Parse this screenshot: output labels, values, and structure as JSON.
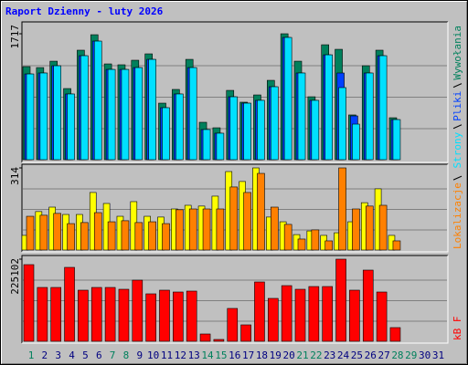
{
  "chart_data": [
    {
      "type": "bar",
      "title": "Raport Dzienny -  luty 2026",
      "ylim": [
        0,
        1717
      ],
      "yticks": [
        1717
      ],
      "series": [
        {
          "name": "Wywołania",
          "color": "#00805c",
          "values": [
            1269,
            1256,
            1343,
            970,
            1493,
            1704,
            1306,
            1294,
            1356,
            1443,
            771,
            958,
            1368,
            510,
            435,
            945,
            784,
            883,
            1082,
            1717,
            1343,
            858,
            1567,
            1505,
            610,
            1281,
            1493,
            572,
            null,
            null,
            null
          ]
        },
        {
          "name": "Pliki",
          "color": "#0040ff",
          "values": [
            1169,
            1182,
            1281,
            896,
            1418,
            1617,
            1231,
            1231,
            1256,
            1368,
            709,
            896,
            1256,
            411,
            361,
            858,
            771,
            809,
            995,
            1667,
            1182,
            809,
            1430,
            1182,
            597,
            1182,
            1418,
            547,
            null,
            null,
            null
          ]
        },
        {
          "name": "Strony",
          "color": "#00e0ff",
          "values": [
            1169,
            1182,
            1281,
            896,
            1418,
            1617,
            1231,
            1231,
            1256,
            1368,
            709,
            896,
            1256,
            411,
            361,
            858,
            771,
            809,
            995,
            1667,
            1182,
            809,
            1430,
            983,
            485,
            1182,
            1418,
            547,
            null,
            null,
            null
          ]
        }
      ]
    },
    {
      "type": "bar",
      "ylim": [
        0,
        314
      ],
      "yticks": [
        314
      ],
      "series": [
        {
          "color": "#ffff00",
          "values": [
            56,
            147,
            164,
            136,
            136,
            220,
            178,
            129,
            185,
            129,
            126,
            157,
            171,
            168,
            206,
            300,
            262,
            314,
            126,
            108,
            59,
            73,
            56,
            66,
            108,
            181,
            234,
            56,
            null,
            null,
            null
          ]
        },
        {
          "name": "Lokalizacje",
          "color": "#ff8000",
          "values": [
            129,
            133,
            140,
            101,
            105,
            143,
            108,
            112,
            105,
            108,
            101,
            154,
            157,
            157,
            157,
            241,
            220,
            293,
            164,
            98,
            42,
            77,
            35,
            314,
            157,
            168,
            171,
            35,
            null,
            null,
            null
          ]
        }
      ]
    },
    {
      "type": "bar",
      "ylim": [
        0,
        225102
      ],
      "yticks": [
        225102
      ],
      "categories": [
        "1",
        "2",
        "3",
        "4",
        "5",
        "6",
        "7",
        "8",
        "9",
        "10",
        "11",
        "12",
        "13",
        "14",
        "15",
        "16",
        "17",
        "18",
        "19",
        "20",
        "21",
        "22",
        "23",
        "24",
        "25",
        "26",
        "27",
        "28",
        "29",
        "30",
        "31"
      ],
      "label_colors": [
        "#00805c",
        "#000080",
        "#000080",
        "#000080",
        "#000080",
        "#000080",
        "#00805c",
        "#00805c",
        "#000080",
        "#000080",
        "#000080",
        "#000080",
        "#000080",
        "#00805c",
        "#00805c",
        "#000080",
        "#000080",
        "#000080",
        "#000080",
        "#000080",
        "#00805c",
        "#00805c",
        "#000080",
        "#000080",
        "#000080",
        "#000080",
        "#000080",
        "#00805c",
        "#00805c",
        "#000080",
        "#000080"
      ],
      "series": [
        {
          "name": "kB F",
          "color": "#ff0000",
          "values": [
            210084,
            147559,
            147559,
            202581,
            140056,
            147559,
            147559,
            142557,
            167567,
            130052,
            140056,
            135054,
            137555,
            20008,
            5002,
            90036,
            45018,
            162565,
            117547,
            152561,
            142557,
            150060,
            150060,
            225102,
            140056,
            195078,
            135054,
            37515,
            null,
            null,
            null
          ]
        }
      ]
    }
  ]
}
